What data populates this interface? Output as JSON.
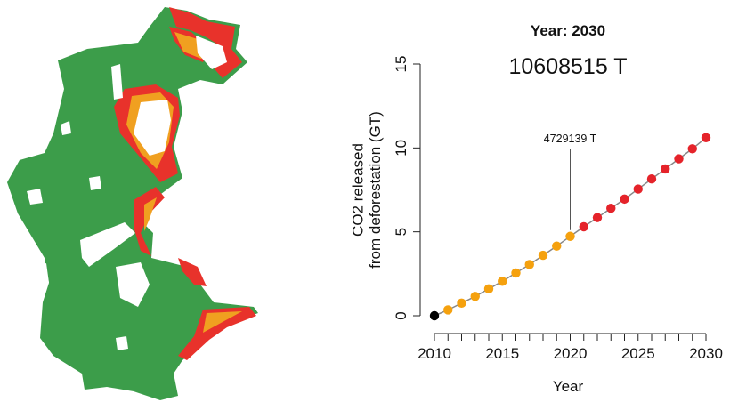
{
  "map": {
    "colors": {
      "forest": "#3c9d4a",
      "cleared": "#ffffff",
      "frontier_red": "#e8322b",
      "frontier_orange": "#f0a020"
    }
  },
  "chart_data": {
    "type": "scatter",
    "title": "Year: 2030",
    "subtitle": "10608515 T",
    "xlabel": "Year",
    "ylabel": "CO2 released\nfrom deforestation (GT)",
    "xlim": [
      2010,
      2030
    ],
    "ylim": [
      0,
      15
    ],
    "xticks": [
      2010,
      2015,
      2020,
      2025,
      2030
    ],
    "yticks": [
      0,
      5,
      10,
      15
    ],
    "annotation": {
      "text": "4729139 T",
      "x": 2020,
      "y": 4.73
    },
    "series": [
      {
        "color": "#000000",
        "x": [
          2010
        ],
        "y": [
          0.0
        ]
      },
      {
        "color": "#f5a10e",
        "x": [
          2011,
          2012,
          2013,
          2014,
          2015,
          2016,
          2017,
          2018,
          2019,
          2020
        ],
        "y": [
          0.35,
          0.75,
          1.15,
          1.6,
          2.05,
          2.55,
          3.05,
          3.6,
          4.15,
          4.73
        ]
      },
      {
        "color": "#e5232a",
        "x": [
          2021,
          2022,
          2023,
          2024,
          2025,
          2026,
          2027,
          2028,
          2029,
          2030
        ],
        "y": [
          5.3,
          5.85,
          6.4,
          6.95,
          7.55,
          8.15,
          8.75,
          9.35,
          9.95,
          10.61
        ]
      }
    ],
    "grid": false,
    "legend": "none"
  }
}
